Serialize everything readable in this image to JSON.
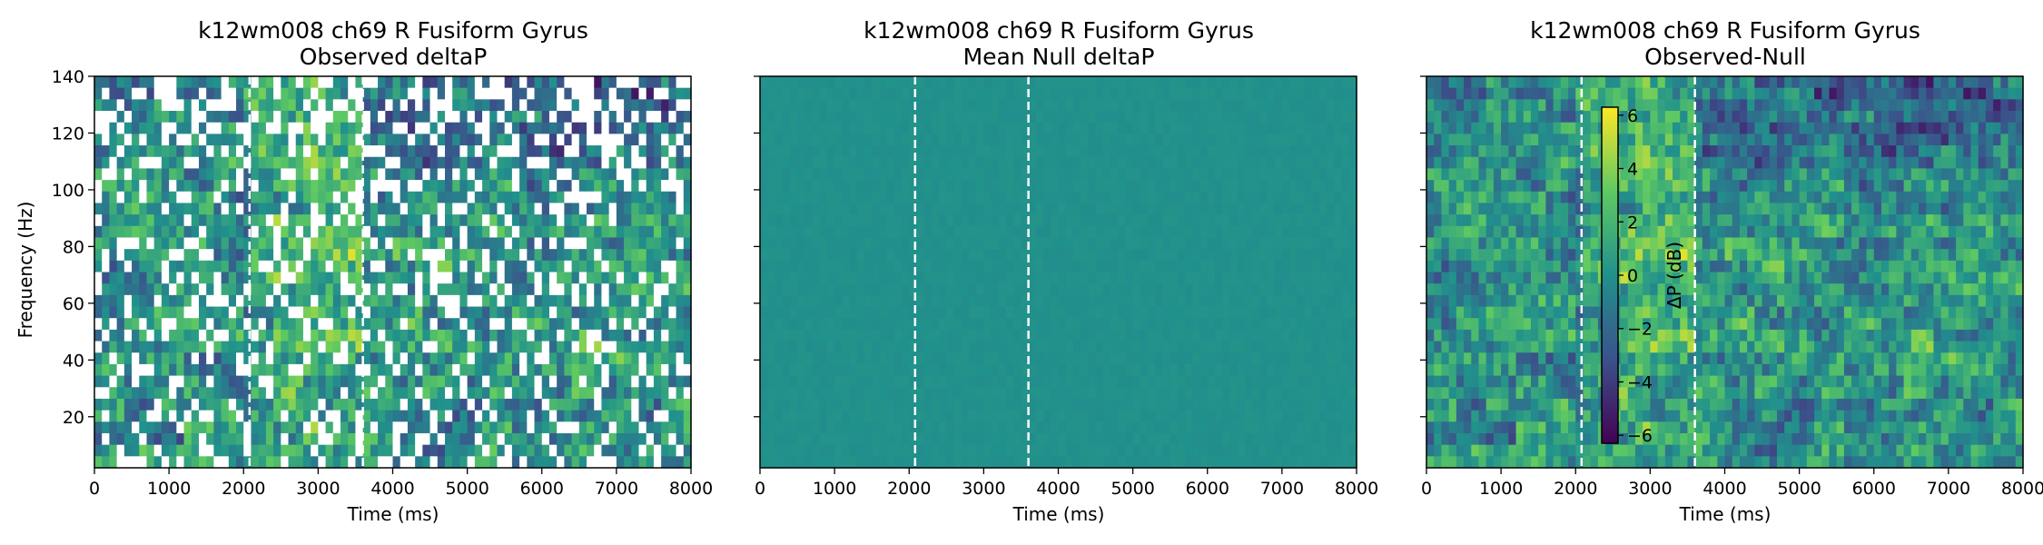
{
  "chart_data": [
    {
      "type": "heatmap",
      "title": "k12wm008 ch69 R Fusiform Gyrus",
      "subtitle": "Observed deltaP",
      "xlabel": "Time (ms)",
      "ylabel": "Frequency (Hz)",
      "xlim": [
        0,
        8000
      ],
      "ylim": [
        2,
        140
      ],
      "x_ticks": [
        0,
        1000,
        2000,
        3000,
        4000,
        5000,
        6000,
        7000,
        8000
      ],
      "y_ticks": [
        20,
        40,
        60,
        80,
        100,
        120,
        140
      ],
      "x_tick_labels": [
        "0",
        "1000",
        "2000",
        "3000",
        "4000",
        "5000",
        "6000",
        "7000",
        "8000"
      ],
      "y_tick_labels": [
        "20",
        "40",
        "60",
        "80",
        "100",
        "120",
        "140"
      ],
      "event_lines_ms": [
        2080,
        3600
      ],
      "colormap": "viridis",
      "masked_cells": true
    },
    {
      "type": "heatmap",
      "title": "k12wm008 ch69 R Fusiform Gyrus",
      "subtitle": "Mean Null deltaP",
      "xlabel": "Time (ms)",
      "ylabel": "",
      "xlim": [
        0,
        8000
      ],
      "ylim": [
        2,
        140
      ],
      "x_ticks": [
        0,
        1000,
        2000,
        3000,
        4000,
        5000,
        6000,
        7000,
        8000
      ],
      "y_ticks": [
        20,
        40,
        60,
        80,
        100,
        120,
        140
      ],
      "x_tick_labels": [
        "0",
        "1000",
        "2000",
        "3000",
        "4000",
        "5000",
        "6000",
        "7000",
        "8000"
      ],
      "event_lines_ms": [
        2080,
        3600
      ],
      "colormap": "viridis",
      "near_uniform_value_db": 0
    },
    {
      "type": "heatmap",
      "title": "k12wm008 ch69 R Fusiform Gyrus",
      "subtitle": "Observed-Null",
      "xlabel": "Time (ms)",
      "ylabel": "",
      "xlim": [
        0,
        8000
      ],
      "ylim": [
        2,
        140
      ],
      "x_ticks": [
        0,
        1000,
        2000,
        3000,
        4000,
        5000,
        6000,
        7000,
        8000
      ],
      "y_ticks": [
        20,
        40,
        60,
        80,
        100,
        120,
        140
      ],
      "x_tick_labels": [
        "0",
        "1000",
        "2000",
        "3000",
        "4000",
        "5000",
        "6000",
        "7000",
        "8000"
      ],
      "event_lines_ms": [
        2080,
        3600
      ],
      "colormap": "viridis",
      "colorbar": {
        "label": "ΔP (dB)",
        "range": [
          -6.3,
          6.3
        ],
        "ticks": [
          -6,
          -4,
          -2,
          0,
          2,
          4,
          6
        ],
        "tick_labels": [
          "−6",
          "−4",
          "−2",
          "0",
          "2",
          "4",
          "6"
        ]
      }
    }
  ]
}
